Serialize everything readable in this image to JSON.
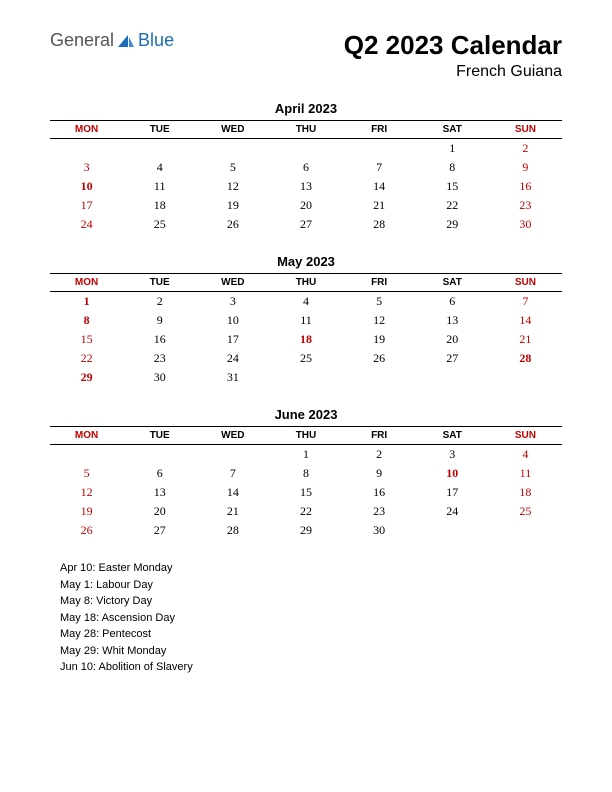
{
  "logo": {
    "text1": "General",
    "text2": "Blue",
    "icon_color": "#1a6db5"
  },
  "title": "Q2 2023 Calendar",
  "subtitle": "French Guiana",
  "day_headers": [
    "MON",
    "TUE",
    "WED",
    "THU",
    "FRI",
    "SAT",
    "SUN"
  ],
  "header_red_cols": [
    0,
    6
  ],
  "colors": {
    "red": "#c00000",
    "black": "#000000"
  },
  "months": [
    {
      "name": "April 2023",
      "weeks": [
        [
          null,
          null,
          null,
          null,
          null,
          {
            "d": 1
          },
          {
            "d": 2,
            "red": true
          }
        ],
        [
          {
            "d": 3,
            "red": true
          },
          {
            "d": 4
          },
          {
            "d": 5
          },
          {
            "d": 6
          },
          {
            "d": 7
          },
          {
            "d": 8
          },
          {
            "d": 9,
            "red": true
          }
        ],
        [
          {
            "d": 10,
            "red": true,
            "bold": true
          },
          {
            "d": 11
          },
          {
            "d": 12
          },
          {
            "d": 13
          },
          {
            "d": 14
          },
          {
            "d": 15
          },
          {
            "d": 16,
            "red": true
          }
        ],
        [
          {
            "d": 17,
            "red": true
          },
          {
            "d": 18
          },
          {
            "d": 19
          },
          {
            "d": 20
          },
          {
            "d": 21
          },
          {
            "d": 22
          },
          {
            "d": 23,
            "red": true
          }
        ],
        [
          {
            "d": 24,
            "red": true
          },
          {
            "d": 25
          },
          {
            "d": 26
          },
          {
            "d": 27
          },
          {
            "d": 28
          },
          {
            "d": 29
          },
          {
            "d": 30,
            "red": true
          }
        ]
      ]
    },
    {
      "name": "May 2023",
      "weeks": [
        [
          {
            "d": 1,
            "red": true,
            "bold": true
          },
          {
            "d": 2
          },
          {
            "d": 3
          },
          {
            "d": 4
          },
          {
            "d": 5
          },
          {
            "d": 6
          },
          {
            "d": 7,
            "red": true
          }
        ],
        [
          {
            "d": 8,
            "red": true,
            "bold": true
          },
          {
            "d": 9
          },
          {
            "d": 10
          },
          {
            "d": 11
          },
          {
            "d": 12
          },
          {
            "d": 13
          },
          {
            "d": 14,
            "red": true
          }
        ],
        [
          {
            "d": 15,
            "red": true
          },
          {
            "d": 16
          },
          {
            "d": 17
          },
          {
            "d": 18,
            "red": true,
            "bold": true
          },
          {
            "d": 19
          },
          {
            "d": 20
          },
          {
            "d": 21,
            "red": true
          }
        ],
        [
          {
            "d": 22,
            "red": true
          },
          {
            "d": 23
          },
          {
            "d": 24
          },
          {
            "d": 25
          },
          {
            "d": 26
          },
          {
            "d": 27
          },
          {
            "d": 28,
            "red": true,
            "bold": true
          }
        ],
        [
          {
            "d": 29,
            "red": true,
            "bold": true
          },
          {
            "d": 30
          },
          {
            "d": 31
          },
          null,
          null,
          null,
          null
        ]
      ]
    },
    {
      "name": "June 2023",
      "weeks": [
        [
          null,
          null,
          null,
          {
            "d": 1
          },
          {
            "d": 2
          },
          {
            "d": 3
          },
          {
            "d": 4,
            "red": true
          }
        ],
        [
          {
            "d": 5,
            "red": true
          },
          {
            "d": 6
          },
          {
            "d": 7
          },
          {
            "d": 8
          },
          {
            "d": 9
          },
          {
            "d": 10,
            "red": true,
            "bold": true
          },
          {
            "d": 11,
            "red": true
          }
        ],
        [
          {
            "d": 12,
            "red": true
          },
          {
            "d": 13
          },
          {
            "d": 14
          },
          {
            "d": 15
          },
          {
            "d": 16
          },
          {
            "d": 17
          },
          {
            "d": 18,
            "red": true
          }
        ],
        [
          {
            "d": 19,
            "red": true
          },
          {
            "d": 20
          },
          {
            "d": 21
          },
          {
            "d": 22
          },
          {
            "d": 23
          },
          {
            "d": 24
          },
          {
            "d": 25,
            "red": true
          }
        ],
        [
          {
            "d": 26,
            "red": true
          },
          {
            "d": 27
          },
          {
            "d": 28
          },
          {
            "d": 29
          },
          {
            "d": 30
          },
          null,
          null
        ]
      ]
    }
  ],
  "holidays": [
    "Apr 10: Easter Monday",
    "May 1: Labour Day",
    "May 8: Victory Day",
    "May 18: Ascension Day",
    "May 28: Pentecost",
    "May 29: Whit Monday",
    "Jun 10: Abolition of Slavery"
  ]
}
